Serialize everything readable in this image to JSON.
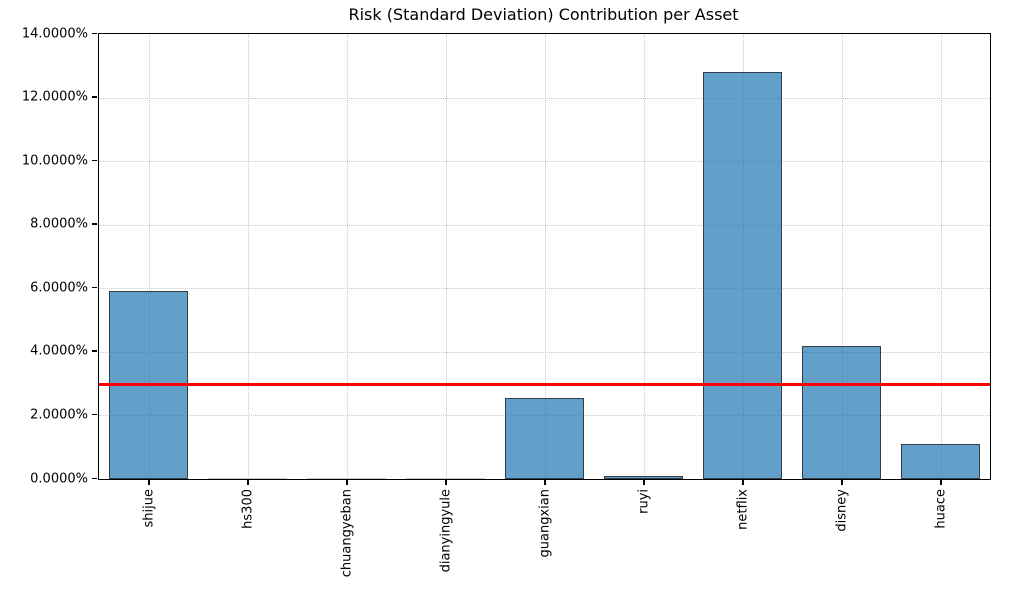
{
  "chart_data": {
    "type": "bar",
    "title": "Risk (Standard Deviation) Contribution per Asset",
    "xlabel": "",
    "ylabel": "",
    "categories": [
      "shijue",
      "hs300",
      "chuangyeban",
      "dianyingyule",
      "guangxian",
      "ruyi",
      "netflix",
      "disney",
      "huace"
    ],
    "values": [
      5.91,
      0.0,
      0.0,
      0.0,
      2.56,
      0.08,
      12.79,
      4.19,
      1.1
    ],
    "value_unit": "percent",
    "ylim": [
      0,
      14
    ],
    "ytick_step": 2,
    "ytick_labels": [
      "0.0000%",
      "2.0000%",
      "4.0000%",
      "6.0000%",
      "8.0000%",
      "10.0000%",
      "12.0000%",
      "14.0000%"
    ],
    "reference_line": {
      "value": 2.96,
      "color": "#ff0000"
    },
    "bar_fill_color": "#1f77b4",
    "bar_fill_alpha": 0.7,
    "bar_edge_color": "#333e48",
    "grid_style": "dotted",
    "grid_color": "#c9c9c9",
    "legend": "none"
  }
}
